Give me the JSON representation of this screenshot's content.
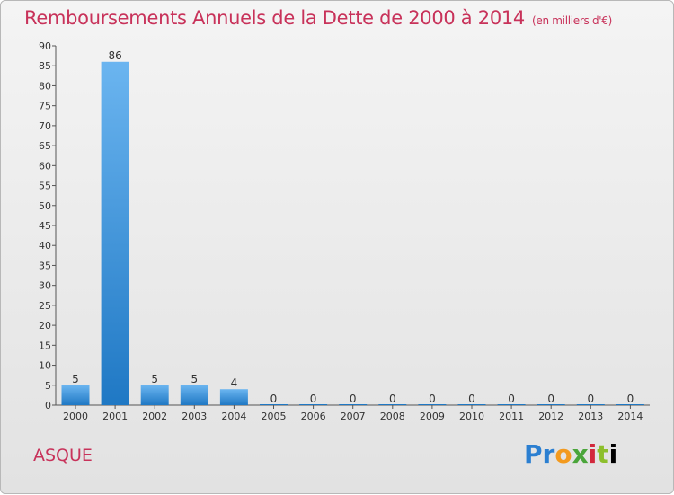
{
  "header": {
    "title": "Remboursements Annuels de la Dette de 2000 à 2014",
    "subtitle": "(en milliers d'€)"
  },
  "footer": {
    "commune": "ASQUE",
    "logo_letters": [
      "P",
      "r",
      "o",
      "x",
      "i",
      "t",
      "i"
    ]
  },
  "colors": {
    "title": "#c8325a",
    "bar_light": "#6bb5f0",
    "bar_dark": "#1f78c4"
  },
  "chart_data": {
    "type": "bar",
    "title": "Remboursements Annuels de la Dette de 2000 à 2014",
    "subtitle": "(en milliers d'€)",
    "categories": [
      "2000",
      "2001",
      "2002",
      "2003",
      "2004",
      "2005",
      "2006",
      "2007",
      "2008",
      "2009",
      "2010",
      "2011",
      "2012",
      "2013",
      "2014"
    ],
    "values": [
      5,
      86,
      5,
      5,
      4,
      0,
      0,
      0,
      0,
      0,
      0,
      0,
      0,
      0,
      0
    ],
    "value_labels": [
      "5",
      "86",
      "5",
      "5",
      "4",
      "0",
      "0",
      "0",
      "0",
      "0",
      "0",
      "0",
      "0",
      "0",
      "0"
    ],
    "ylim": [
      0,
      90
    ],
    "yticks": [
      0,
      5,
      10,
      15,
      20,
      25,
      30,
      35,
      40,
      45,
      50,
      55,
      60,
      65,
      70,
      75,
      80,
      85,
      90
    ],
    "xlabel": "",
    "ylabel": "",
    "grid": false,
    "legend": "none"
  }
}
